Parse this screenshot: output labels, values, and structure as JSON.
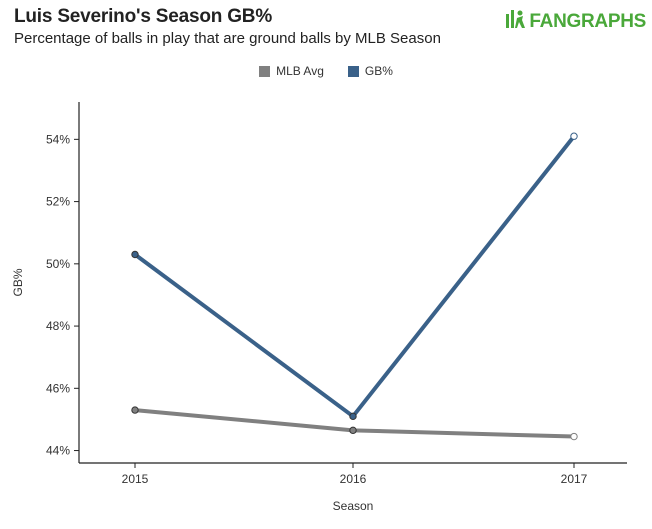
{
  "header": {
    "title": "Luis Severino's Season GB%",
    "subtitle": "Percentage of balls in play that are ground balls by MLB Season",
    "logo_text": "FANGRAPHS"
  },
  "chart_data": {
    "type": "line",
    "title": "Luis Severino's Season GB%",
    "subtitle": "Percentage of balls in play that are ground balls by MLB Season",
    "xlabel": "Season",
    "ylabel": "GB%",
    "categories": [
      "2015",
      "2016",
      "2017"
    ],
    "y_ticks": [
      44,
      46,
      48,
      50,
      52,
      54
    ],
    "y_tick_labels": [
      "44%",
      "46%",
      "48%",
      "50%",
      "52%",
      "54%"
    ],
    "ylim": [
      43.6,
      55.2
    ],
    "legend_position": "top-center",
    "series": [
      {
        "name": "MLB Avg",
        "color": "#808080",
        "values": [
          45.3,
          44.65,
          44.45
        ]
      },
      {
        "name": "GB%",
        "color": "#3a6189",
        "values": [
          50.3,
          45.1,
          54.1
        ]
      }
    ]
  }
}
